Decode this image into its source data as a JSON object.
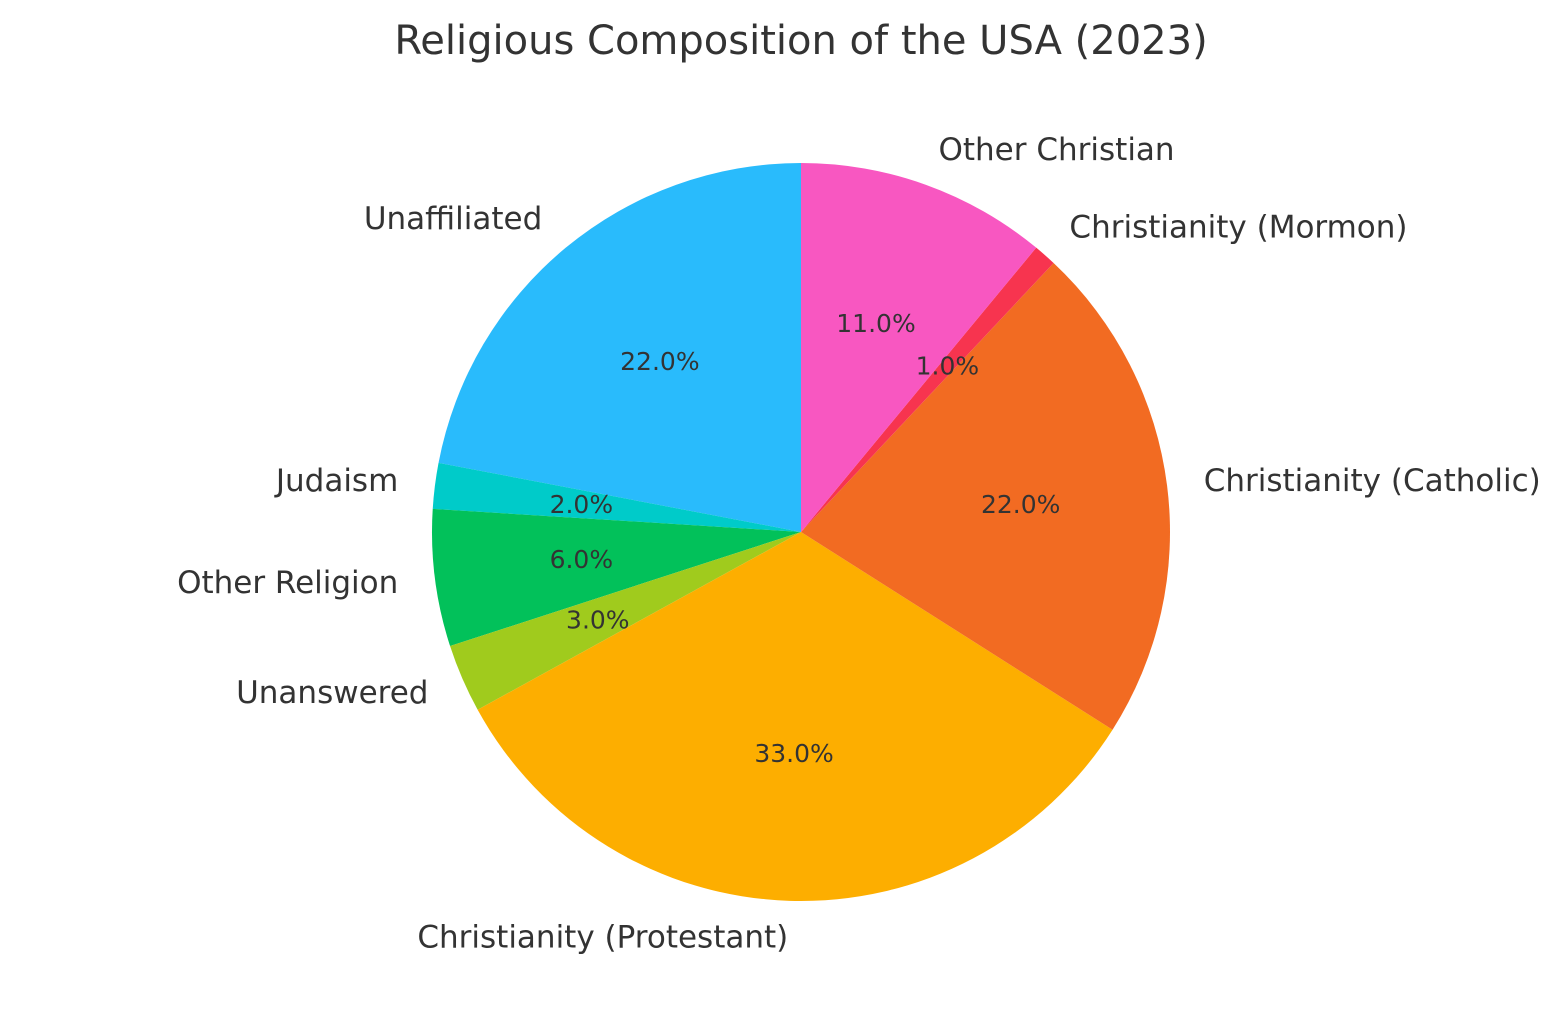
{
  "chart_data": {
    "type": "pie",
    "title": "Religious Composition of the USA (2023)",
    "start_angle_deg": 90,
    "direction": "counterclockwise",
    "slices": [
      {
        "label": "Unaffiliated",
        "value": 22.0,
        "value_label": "22.0%",
        "color": "#29bbfc"
      },
      {
        "label": "Judaism",
        "value": 2.0,
        "value_label": "2.0%",
        "color": "#00cbc9"
      },
      {
        "label": "Other Religion",
        "value": 6.0,
        "value_label": "6.0%",
        "color": "#02c15a"
      },
      {
        "label": "Unanswered",
        "value": 3.0,
        "value_label": "3.0%",
        "color": "#a0cb1d"
      },
      {
        "label": "Christianity (Protestant)",
        "value": 33.0,
        "value_label": "33.0%",
        "color": "#fdae00"
      },
      {
        "label": "Christianity (Catholic)",
        "value": 22.0,
        "value_label": "22.0%",
        "color": "#f26b22"
      },
      {
        "label": "Christianity (Mormon)",
        "value": 1.0,
        "value_label": "1.0%",
        "color": "#f7344f"
      },
      {
        "label": "Other Christian",
        "value": 11.0,
        "value_label": "11.0%",
        "color": "#f857c1"
      }
    ]
  }
}
